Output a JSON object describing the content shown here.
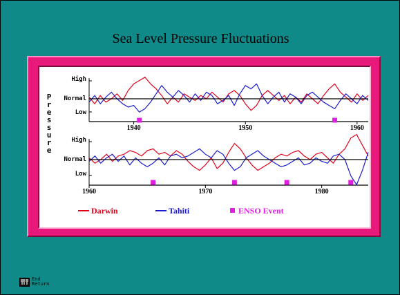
{
  "slide": {
    "title": "Sea Level Pressure Fluctuations",
    "background_color": "#0f8a88",
    "frame_color": "#e8197a"
  },
  "chart_data": {
    "type": "line",
    "ylabel": "Pressure",
    "panels": [
      {
        "xlim": [
          1936,
          1961
        ],
        "x_ticks": [
          1940,
          1950,
          1960
        ],
        "x_tick_labels": [
          "1940",
          "1950",
          "1960"
        ],
        "y_tick_labels": [
          "High",
          "Normal",
          "Low"
        ],
        "series": [
          {
            "name": "Darwin",
            "color": "#e0001a",
            "x": [
              1936.0,
              1936.5,
              1937.0,
              1937.5,
              1938.0,
              1938.5,
              1939.0,
              1939.5,
              1940.0,
              1940.5,
              1941.0,
              1941.5,
              1942.0,
              1942.5,
              1943.0,
              1943.5,
              1944.0,
              1944.5,
              1945.0,
              1945.5,
              1946.0,
              1946.5,
              1947.0,
              1947.5,
              1948.0,
              1948.5,
              1949.0,
              1949.5,
              1950.0,
              1950.5,
              1951.0,
              1951.5,
              1952.0,
              1952.5,
              1953.0,
              1953.5,
              1954.0,
              1954.5,
              1955.0,
              1955.5,
              1956.0,
              1956.5,
              1957.0,
              1957.5,
              1958.0,
              1958.5,
              1959.0,
              1959.5,
              1960.0,
              1960.5,
              1961.0
            ],
            "y": [
              0.1,
              -0.3,
              0.2,
              -0.2,
              0.0,
              0.3,
              -0.1,
              0.5,
              0.9,
              1.1,
              1.3,
              0.9,
              0.6,
              0.2,
              -0.3,
              0.1,
              -0.2,
              0.3,
              0.1,
              -0.1,
              0.2,
              0.0,
              0.4,
              0.1,
              -0.2,
              0.3,
              0.5,
              0.2,
              -0.3,
              -0.7,
              -0.4,
              0.2,
              0.5,
              0.2,
              -0.1,
              0.2,
              -0.3,
              0.1,
              -0.2,
              0.3,
              0.0,
              -0.3,
              0.2,
              0.6,
              0.9,
              0.4,
              0.1,
              -0.2,
              0.3,
              -0.1,
              0.2
            ]
          },
          {
            "name": "Tahiti",
            "color": "#1a1ad0",
            "x": [
              1936.0,
              1936.5,
              1937.0,
              1937.5,
              1938.0,
              1938.5,
              1939.0,
              1939.5,
              1940.0,
              1940.5,
              1941.0,
              1941.5,
              1942.0,
              1942.5,
              1943.0,
              1943.5,
              1944.0,
              1944.5,
              1945.0,
              1945.5,
              1946.0,
              1946.5,
              1947.0,
              1947.5,
              1948.0,
              1948.5,
              1949.0,
              1949.5,
              1950.0,
              1950.5,
              1951.0,
              1951.5,
              1952.0,
              1952.5,
              1953.0,
              1953.5,
              1954.0,
              1954.5,
              1955.0,
              1955.5,
              1956.0,
              1956.5,
              1957.0,
              1957.5,
              1958.0,
              1958.5,
              1959.0,
              1959.5,
              1960.0,
              1960.5,
              1961.0
            ],
            "y": [
              -0.2,
              0.2,
              -0.3,
              0.1,
              0.4,
              0.0,
              -0.3,
              -0.5,
              -0.4,
              -0.8,
              -0.6,
              -0.2,
              0.3,
              0.8,
              0.4,
              0.1,
              0.5,
              0.2,
              -0.2,
              0.3,
              -0.1,
              0.4,
              0.2,
              -0.3,
              -0.1,
              0.2,
              -0.4,
              0.3,
              0.8,
              0.6,
              0.9,
              0.2,
              -0.3,
              0.1,
              0.4,
              -0.2,
              0.3,
              0.1,
              -0.3,
              0.2,
              0.4,
              0.1,
              -0.2,
              -0.4,
              -0.6,
              -0.1,
              0.3,
              0.0,
              -0.3,
              0.2,
              -0.1
            ]
          }
        ],
        "enso_events": [
          1940.5,
          1958.0
        ]
      },
      {
        "xlim": [
          1960,
          1984
        ],
        "x_ticks": [
          1960,
          1970,
          1980
        ],
        "x_tick_labels": [
          "1960",
          "1970",
          "1980"
        ],
        "y_tick_labels": [
          "High",
          "Normal",
          "Low"
        ],
        "series": [
          {
            "name": "Darwin",
            "color": "#e0001a",
            "x": [
              1960.0,
              1960.5,
              1961.0,
              1961.5,
              1962.0,
              1962.5,
              1963.0,
              1963.5,
              1964.0,
              1964.5,
              1965.0,
              1965.5,
              1966.0,
              1966.5,
              1967.0,
              1967.5,
              1968.0,
              1968.5,
              1969.0,
              1969.5,
              1970.0,
              1970.5,
              1971.0,
              1971.5,
              1972.0,
              1972.5,
              1973.0,
              1973.5,
              1974.0,
              1974.5,
              1975.0,
              1975.5,
              1976.0,
              1976.5,
              1977.0,
              1977.5,
              1978.0,
              1978.5,
              1979.0,
              1979.5,
              1980.0,
              1980.5,
              1981.0,
              1981.5,
              1982.0,
              1982.5,
              1983.0,
              1983.5,
              1984.0
            ],
            "y": [
              0.1,
              -0.2,
              0.0,
              0.3,
              -0.1,
              0.2,
              0.3,
              0.5,
              0.4,
              0.2,
              0.5,
              0.6,
              0.3,
              0.4,
              0.2,
              0.5,
              0.3,
              -0.1,
              -0.4,
              -0.6,
              -0.3,
              0.1,
              -0.5,
              -0.2,
              0.4,
              0.9,
              0.6,
              0.1,
              -0.3,
              -0.6,
              -0.4,
              -0.2,
              0.1,
              0.3,
              0.2,
              0.4,
              0.5,
              0.2,
              0.0,
              0.3,
              0.4,
              0.1,
              -0.2,
              0.3,
              0.6,
              1.2,
              1.4,
              0.8,
              0.2
            ]
          },
          {
            "name": "Tahiti",
            "color": "#1a1ad0",
            "x": [
              1960.0,
              1960.5,
              1961.0,
              1961.5,
              1962.0,
              1962.5,
              1963.0,
              1963.5,
              1964.0,
              1964.5,
              1965.0,
              1965.5,
              1966.0,
              1966.5,
              1967.0,
              1967.5,
              1968.0,
              1968.5,
              1969.0,
              1969.5,
              1970.0,
              1970.5,
              1971.0,
              1971.5,
              1972.0,
              1972.5,
              1973.0,
              1973.5,
              1974.0,
              1974.5,
              1975.0,
              1975.5,
              1976.0,
              1976.5,
              1977.0,
              1977.5,
              1978.0,
              1978.5,
              1979.0,
              1979.5,
              1980.0,
              1980.5,
              1981.0,
              1981.5,
              1982.0,
              1982.5,
              1983.0,
              1983.5,
              1984.0
            ],
            "y": [
              -0.1,
              0.2,
              -0.2,
              0.1,
              0.3,
              -0.1,
              0.2,
              -0.3,
              0.1,
              -0.2,
              -0.4,
              -0.2,
              0.1,
              -0.3,
              0.2,
              0.3,
              0.1,
              0.2,
              0.4,
              0.6,
              0.3,
              0.1,
              0.5,
              0.3,
              -0.2,
              -0.6,
              -0.4,
              0.1,
              0.3,
              0.5,
              0.2,
              0.0,
              -0.2,
              -0.4,
              -0.3,
              -0.1,
              0.1,
              -0.3,
              -0.2,
              0.1,
              -0.1,
              -0.2,
              0.2,
              0.3,
              0.0,
              -0.9,
              -1.4,
              -0.6,
              0.4
            ]
          }
        ],
        "enso_events": [
          1965.5,
          1972.5,
          1977.0,
          1982.5
        ]
      }
    ],
    "legend": [
      {
        "label": "Darwin",
        "color": "#e0001a",
        "marker": "line"
      },
      {
        "label": "Tahiti",
        "color": "#1a1ad0",
        "marker": "line"
      },
      {
        "label": "ENSO Event",
        "color": "#e020e0",
        "marker": "square"
      }
    ],
    "legend_position": "bottom"
  },
  "nav": {
    "icon": "film-strip-icon",
    "end_label": "End",
    "return_label": "Return"
  }
}
